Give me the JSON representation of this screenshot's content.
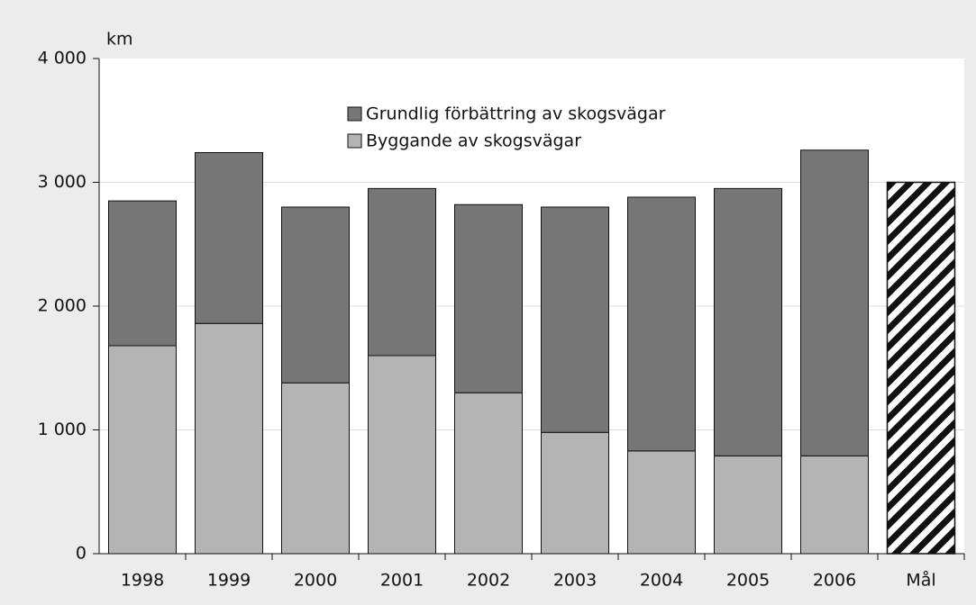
{
  "chart_data": {
    "type": "stacked_bar",
    "y_label": "km",
    "categories": [
      "1998",
      "1999",
      "2000",
      "2001",
      "2002",
      "2003",
      "2004",
      "2005",
      "2006",
      "Mål"
    ],
    "series": [
      {
        "name": "Byggande av skogsvägar",
        "color": "#b4b4b4",
        "values": [
          1680,
          1860,
          1380,
          1600,
          1300,
          980,
          830,
          790,
          790,
          null
        ]
      },
      {
        "name": "Grundlig förbättring av skogsvägar",
        "color": "#767676",
        "values": [
          1170,
          1380,
          1420,
          1350,
          1520,
          1820,
          2050,
          2160,
          2470,
          null
        ]
      }
    ],
    "target": 3000,
    "ylim": [
      0,
      4000
    ],
    "yticks": [
      0,
      {
        "value": 1000,
        "label": "1 000"
      },
      {
        "value": 2000,
        "label": "2 000"
      },
      {
        "value": 3000,
        "label": "3 000"
      },
      {
        "value": 4000,
        "label": "4 000"
      }
    ],
    "grid": true
  }
}
